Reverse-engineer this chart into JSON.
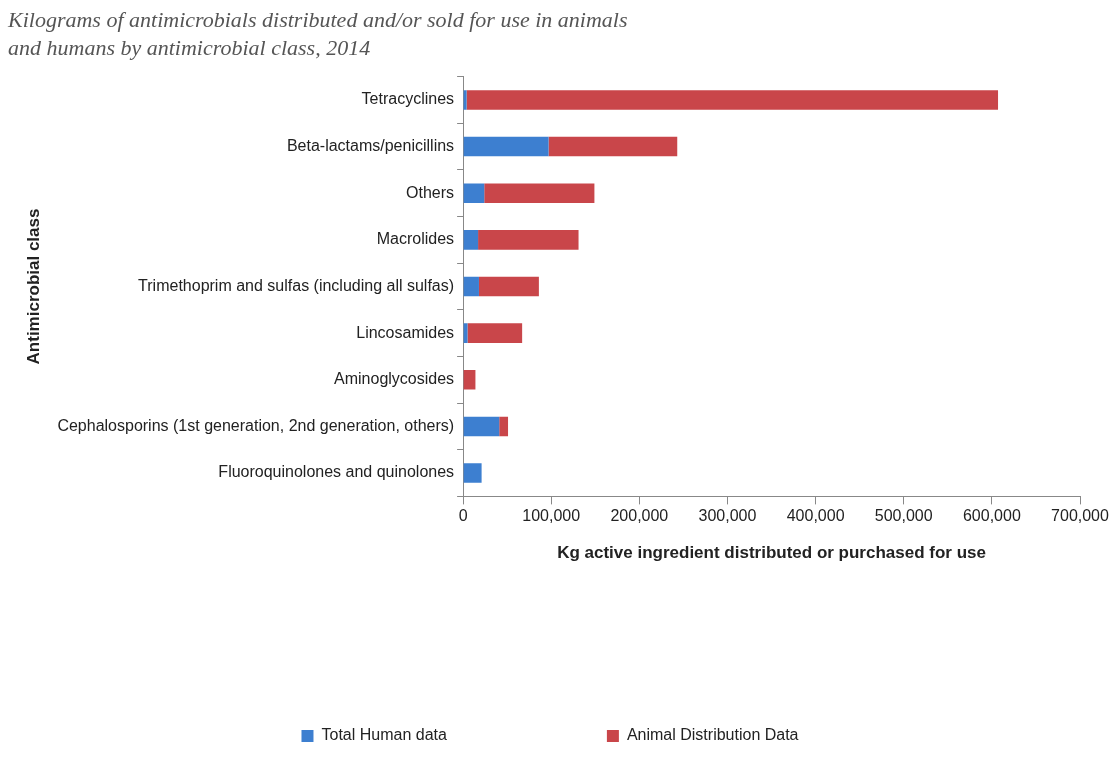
{
  "chart_data": {
    "type": "bar",
    "orientation": "horizontal",
    "stacked": true,
    "title": "Kilograms of antimicrobials distributed and/or sold for use in animals and humans by antimicrobial class, 2014",
    "categories": [
      "Tetracyclines",
      "Beta-lactams/penicillins",
      "Others",
      "Macrolides",
      "Trimethoprim and sulfas (including all sulfas)",
      "Lincosamides",
      "Aminoglycosides",
      "Cephalosporins (1st generation, 2nd generation, others)",
      "Fluoroquinolones and quinolones"
    ],
    "series": [
      {
        "name": "Total Human data",
        "color": "#3d7fd0",
        "values": [
          4000,
          97000,
          24000,
          17000,
          18000,
          5000,
          0,
          41000,
          21000
        ]
      },
      {
        "name": "Animal Distribution Data",
        "color": "#c9464a",
        "values": [
          603000,
          146000,
          125000,
          114000,
          68000,
          62000,
          14000,
          10000,
          0
        ]
      }
    ],
    "xlim": [
      0,
      700000
    ],
    "xticks": [
      0,
      {
        "value": 100000,
        "label": "100,000"
      },
      {
        "value": 200000,
        "label": "200,000"
      },
      {
        "value": 300000,
        "label": "300,000"
      },
      {
        "value": 400000,
        "label": "400,000"
      },
      {
        "value": 500000,
        "label": "500,000"
      },
      {
        "value": 600000,
        "label": "600,000"
      },
      {
        "value": 700000,
        "label": "700,000"
      }
    ],
    "xlabel": "Kg active ingredient distributed or purchased for use",
    "ylabel": "Antimicrobial class",
    "grid": false,
    "legend": "bottom"
  }
}
